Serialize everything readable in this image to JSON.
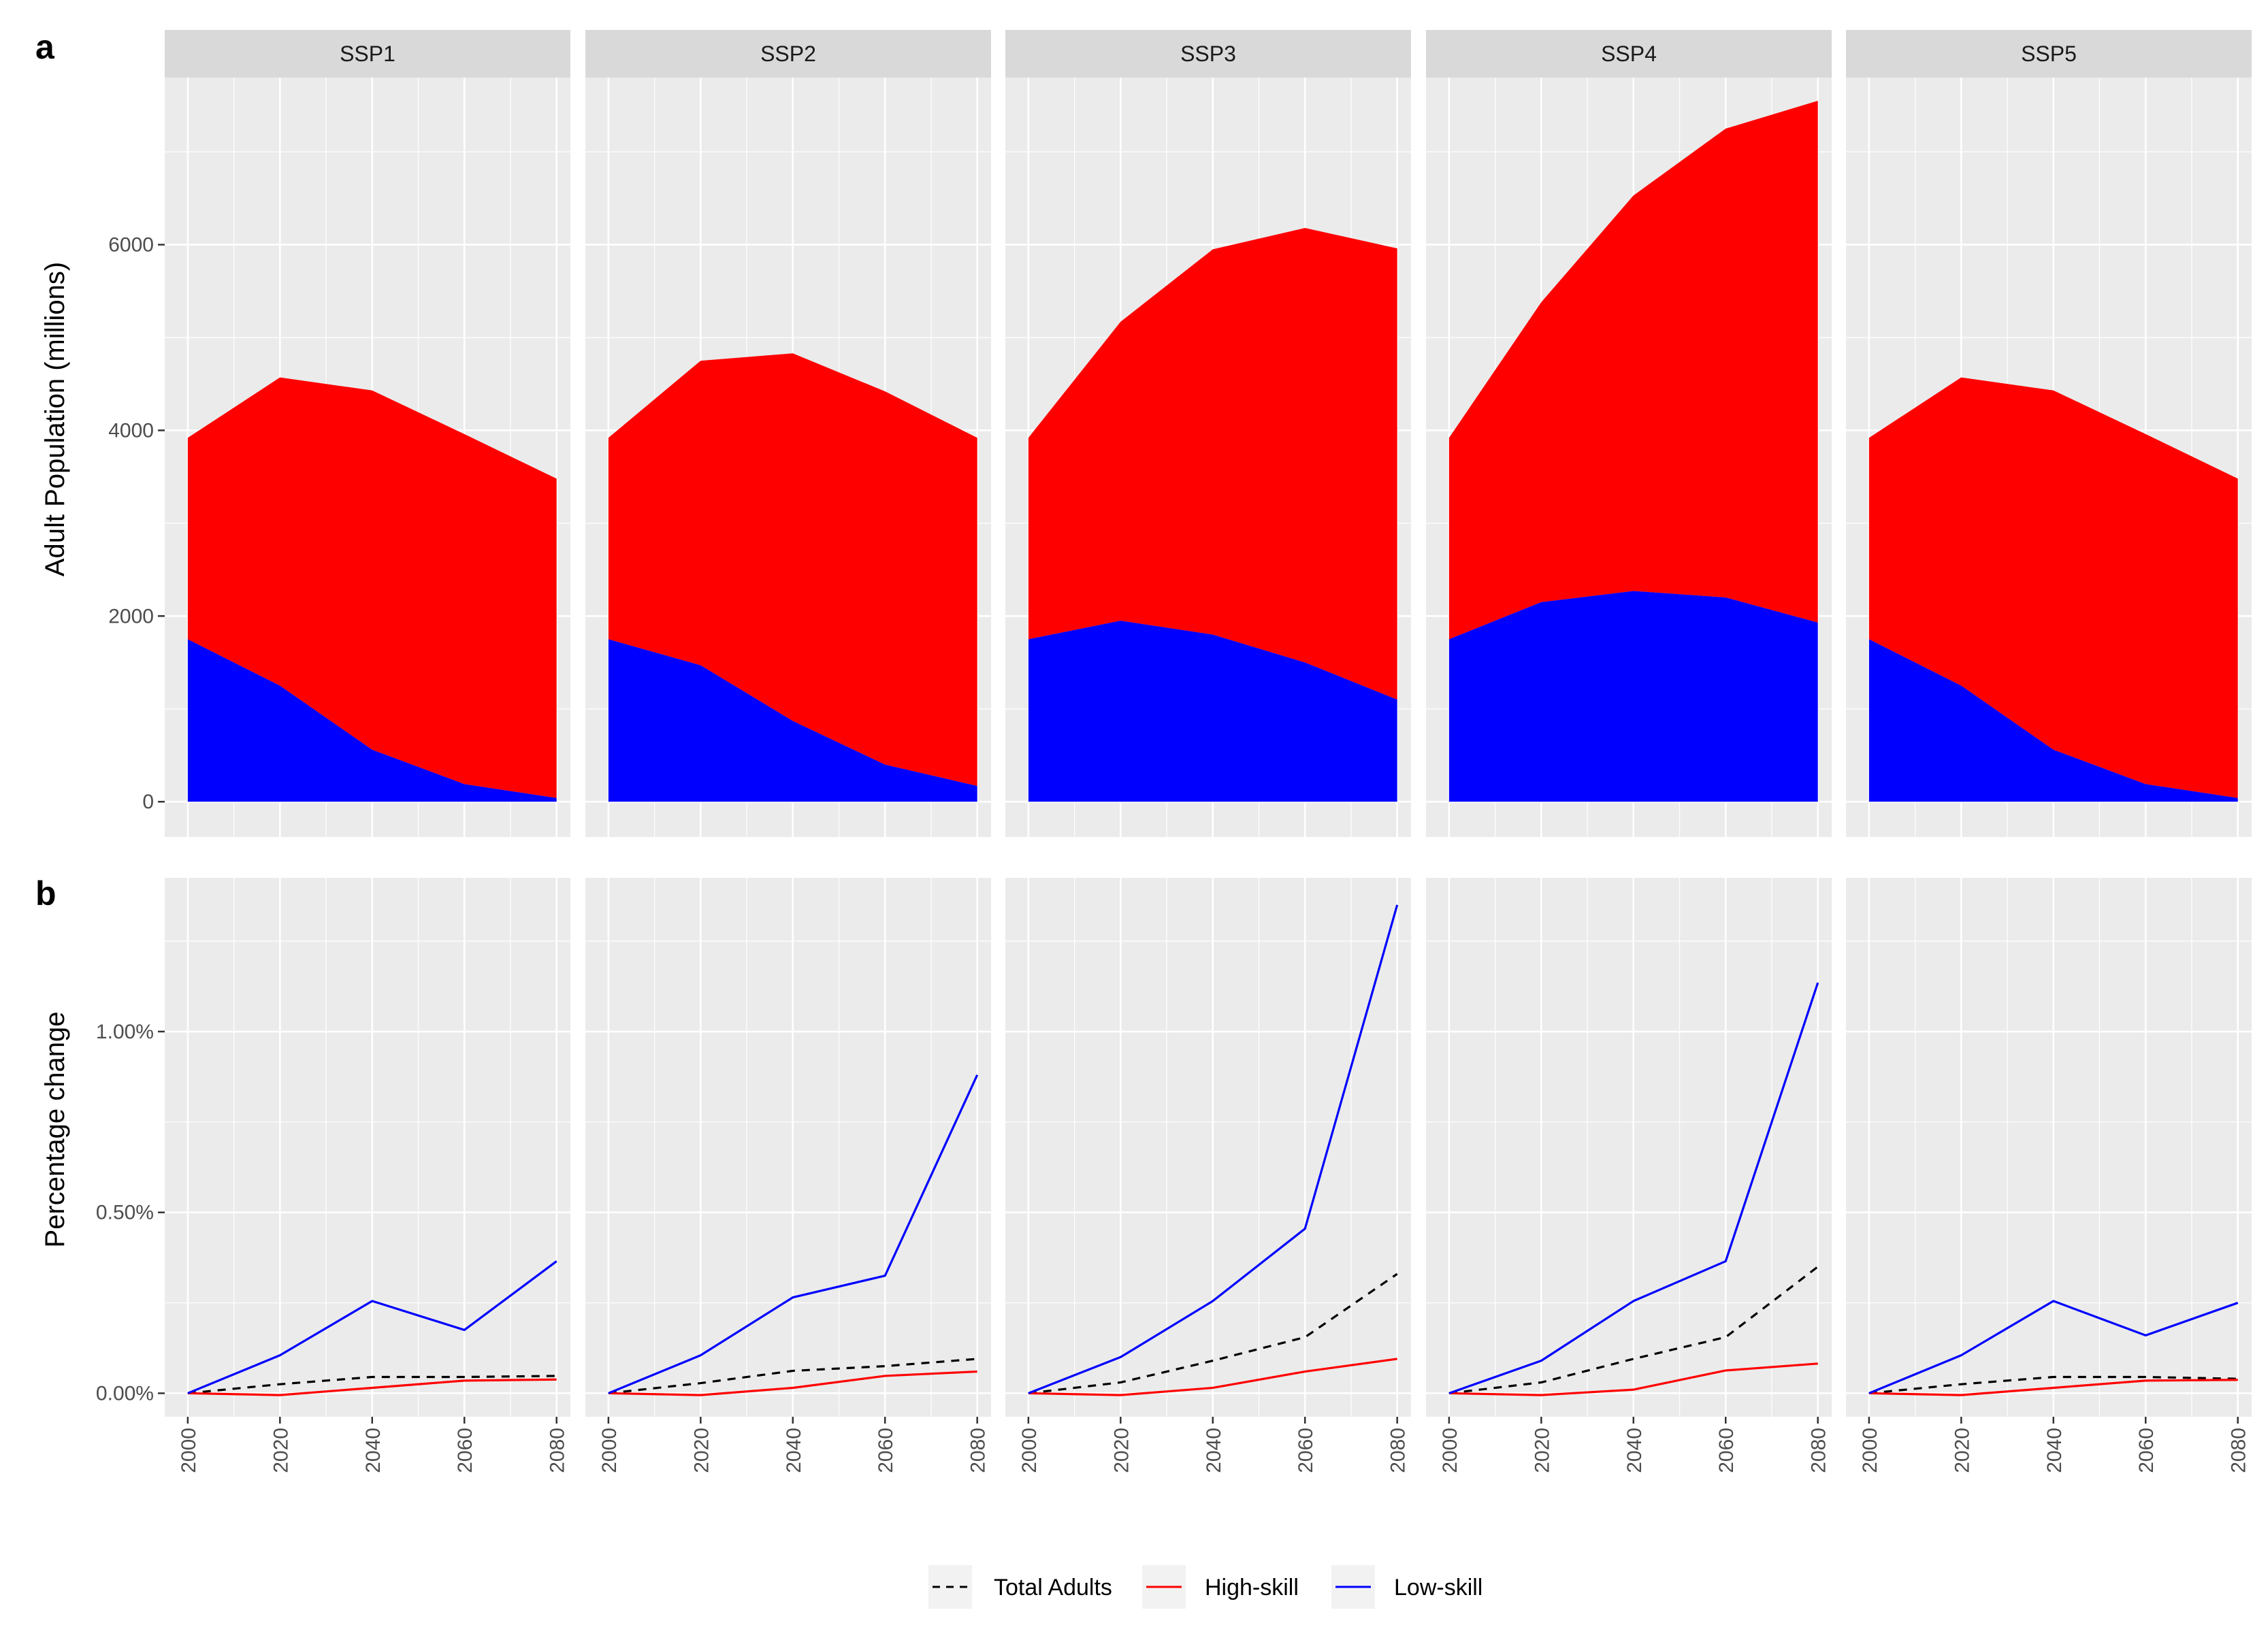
{
  "chart_data": [
    {
      "type": "area",
      "panel_letter": "a",
      "facets": [
        "SSP1",
        "SSP2",
        "SSP3",
        "SSP4",
        "SSP5"
      ],
      "x": [
        2000,
        2020,
        2040,
        2060,
        2080
      ],
      "ylabel": "Adult Population (millions)",
      "ylim": [
        -380,
        7800
      ],
      "yticks": [
        0,
        2000,
        4000,
        6000
      ],
      "ytick_labels": [
        "0",
        "2000",
        "4000",
        "6000"
      ],
      "stacked": true,
      "series": [
        {
          "name": "Low-skill",
          "color": "#0000FF",
          "by_facet": {
            "SSP1": [
              1750,
              1250,
              560,
              190,
              40
            ],
            "SSP2": [
              1750,
              1470,
              870,
              400,
              170
            ],
            "SSP3": [
              1750,
              1950,
              1800,
              1500,
              1100
            ],
            "SSP4": [
              1750,
              2150,
              2270,
              2200,
              1930
            ],
            "SSP5": [
              1750,
              1250,
              560,
              190,
              40
            ]
          }
        },
        {
          "name": "High-skill",
          "color": "#FF0000",
          "by_facet": {
            "SSP1": [
              2170,
              3320,
              3870,
              3770,
              3440
            ],
            "SSP2": [
              2170,
              3280,
              3960,
              4020,
              3750
            ],
            "SSP3": [
              2170,
              3220,
              4150,
              4680,
              4860
            ],
            "SSP4": [
              2170,
              3230,
              4260,
              5050,
              5620
            ],
            "SSP5": [
              2170,
              3320,
              3870,
              3770,
              3440
            ]
          }
        }
      ]
    },
    {
      "type": "line",
      "panel_letter": "b",
      "facets": [
        "SSP1",
        "SSP2",
        "SSP3",
        "SSP4",
        "SSP5"
      ],
      "x": [
        2000,
        2020,
        2040,
        2060,
        2080
      ],
      "xtick_labels": [
        "2000",
        "2020",
        "2040",
        "2060",
        "2080"
      ],
      "ylabel": "Percentage change",
      "ylim": [
        -0.065,
        1.425
      ],
      "yticks": [
        0,
        0.5,
        1.0
      ],
      "ytick_labels": [
        "0.00%",
        "0.50%",
        "1.00%"
      ],
      "series": [
        {
          "name": "Total Adults",
          "color": "#000000",
          "dash": true,
          "by_facet": {
            "SSP1": [
              0,
              0.025,
              0.045,
              0.045,
              0.048
            ],
            "SSP2": [
              0,
              0.028,
              0.062,
              0.075,
              0.095
            ],
            "SSP3": [
              0,
              0.03,
              0.09,
              0.155,
              0.33
            ],
            "SSP4": [
              0,
              0.03,
              0.095,
              0.155,
              0.35
            ],
            "SSP5": [
              0,
              0.025,
              0.045,
              0.045,
              0.04
            ]
          }
        },
        {
          "name": "High-skill",
          "color": "#FF0000",
          "dash": false,
          "by_facet": {
            "SSP1": [
              0,
              -0.005,
              0.015,
              0.035,
              0.038
            ],
            "SSP2": [
              0,
              -0.005,
              0.015,
              0.048,
              0.06
            ],
            "SSP3": [
              0,
              -0.005,
              0.015,
              0.06,
              0.095
            ],
            "SSP4": [
              0,
              -0.005,
              0.01,
              0.063,
              0.082
            ],
            "SSP5": [
              0,
              -0.005,
              0.015,
              0.035,
              0.037
            ]
          }
        },
        {
          "name": "Low-skill",
          "color": "#0000FF",
          "dash": false,
          "by_facet": {
            "SSP1": [
              0,
              0.105,
              0.255,
              0.175,
              0.365
            ],
            "SSP2": [
              0,
              0.105,
              0.265,
              0.325,
              0.88
            ],
            "SSP3": [
              0,
              0.1,
              0.255,
              0.455,
              1.35
            ],
            "SSP4": [
              0,
              0.09,
              0.255,
              0.365,
              1.135
            ],
            "SSP5": [
              0,
              0.105,
              0.255,
              0.16,
              0.25
            ]
          }
        }
      ]
    }
  ],
  "legend": {
    "position": "bottom",
    "items": [
      {
        "label": "Total Adults",
        "color": "#000000",
        "dash": true
      },
      {
        "label": "High-skill",
        "color": "#FF0000",
        "dash": false
      },
      {
        "label": "Low-skill",
        "color": "#0000FF",
        "dash": false
      }
    ]
  },
  "colors": {
    "panel_bg": "#EBEBEB",
    "strip_bg": "#D9D9D9",
    "grid": "#FFFFFF",
    "tick": "#333333"
  }
}
